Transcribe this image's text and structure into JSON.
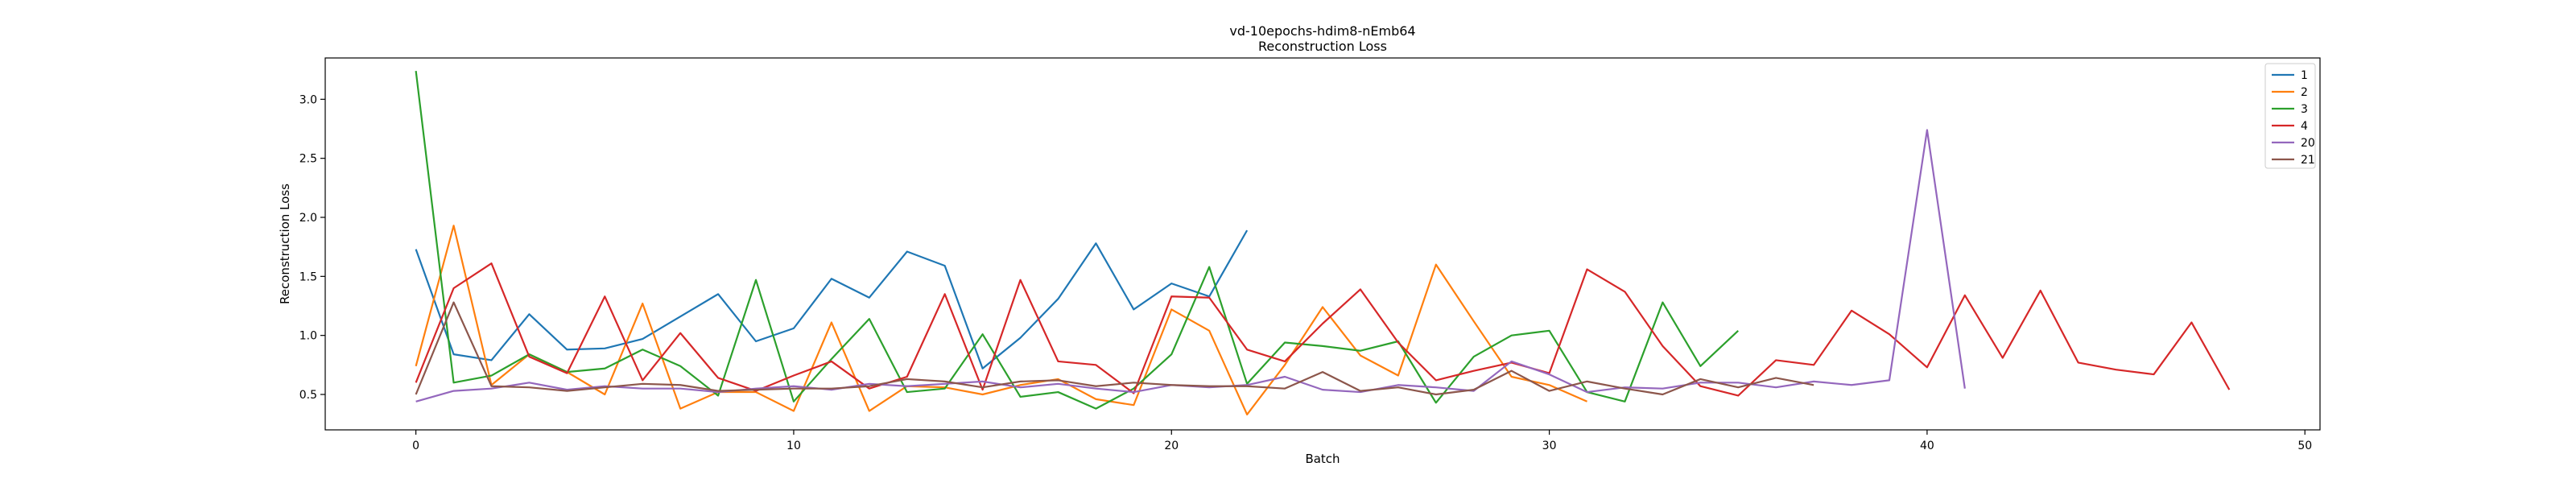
{
  "chart_data": {
    "type": "line",
    "title": "vd-10epochs-hdim8-nEmb64",
    "subtitle": "Reconstruction Loss",
    "xlabel": "Batch",
    "ylabel": "Reconstruction Loss",
    "xlim": [
      -2.4,
      50.4
    ],
    "ylim": [
      0.2,
      3.35
    ],
    "xticks": [
      0,
      10,
      20,
      30,
      40,
      50
    ],
    "yticks": [
      0.5,
      1.0,
      1.5,
      2.0,
      2.5,
      3.0
    ],
    "xtick_labels": [
      "0",
      "10",
      "20",
      "30",
      "40",
      "50"
    ],
    "ytick_labels": [
      "0.5",
      "1.0",
      "1.5",
      "2.0",
      "2.5",
      "3.0"
    ],
    "grid": false,
    "legend_position": "top-right",
    "series": [
      {
        "name": "1",
        "color": "#1f77b4",
        "values": [
          1.73,
          0.84,
          0.79,
          1.18,
          0.88,
          0.89,
          0.97,
          1.16,
          1.35,
          0.95,
          1.06,
          1.48,
          1.32,
          1.71,
          1.59,
          0.72,
          0.98,
          1.31,
          1.78,
          1.22,
          1.44,
          1.33,
          1.89
        ]
      },
      {
        "name": "2",
        "color": "#ff7f0e",
        "values": [
          0.74,
          1.93,
          0.58,
          0.84,
          0.69,
          0.5,
          1.27,
          0.38,
          0.52,
          0.52,
          0.36,
          1.11,
          0.36,
          0.57,
          0.56,
          0.5,
          0.58,
          0.63,
          0.46,
          0.41,
          1.22,
          1.04,
          0.33,
          0.75,
          1.24,
          0.83,
          0.66,
          1.6,
          1.12,
          0.65,
          0.58,
          0.44
        ]
      },
      {
        "name": "3",
        "color": "#2ca02c",
        "values": [
          3.24,
          0.6,
          0.66,
          0.84,
          0.69,
          0.72,
          0.88,
          0.74,
          0.49,
          1.47,
          0.44,
          0.8,
          1.14,
          0.52,
          0.55,
          1.01,
          0.48,
          0.52,
          0.38,
          0.55,
          0.84,
          1.58,
          0.59,
          0.94,
          0.91,
          0.87,
          0.95,
          0.43,
          0.82,
          1.0,
          1.04,
          0.52,
          0.44,
          1.28,
          0.74,
          1.04
        ]
      },
      {
        "name": "4",
        "color": "#d62728",
        "values": [
          0.6,
          1.4,
          1.61,
          0.82,
          0.68,
          1.33,
          0.62,
          1.02,
          0.64,
          0.53,
          0.66,
          0.78,
          0.55,
          0.65,
          1.35,
          0.54,
          1.47,
          0.78,
          0.75,
          0.51,
          1.33,
          1.32,
          0.88,
          0.78,
          1.1,
          1.39,
          0.94,
          0.62,
          0.7,
          0.77,
          0.68,
          1.56,
          1.37,
          0.91,
          0.57,
          0.49,
          0.79,
          0.75,
          1.21,
          1.01,
          0.73,
          1.34,
          0.81,
          1.38,
          0.77,
          0.71,
          0.67,
          1.11,
          0.54
        ]
      },
      {
        "name": "20",
        "color": "#9467bd",
        "values": [
          0.44,
          0.53,
          0.55,
          0.6,
          0.54,
          0.57,
          0.55,
          0.55,
          0.52,
          0.55,
          0.57,
          0.54,
          0.59,
          0.57,
          0.59,
          0.61,
          0.56,
          0.59,
          0.55,
          0.52,
          0.58,
          0.56,
          0.58,
          0.65,
          0.54,
          0.52,
          0.58,
          0.56,
          0.53,
          0.78,
          0.67,
          0.52,
          0.56,
          0.55,
          0.6,
          0.6,
          0.56,
          0.61,
          0.58,
          0.62,
          2.74,
          0.55
        ]
      },
      {
        "name": "21",
        "color": "#8c564b",
        "values": [
          0.5,
          1.28,
          0.57,
          0.56,
          0.53,
          0.56,
          0.59,
          0.58,
          0.53,
          0.54,
          0.55,
          0.55,
          0.57,
          0.63,
          0.61,
          0.56,
          0.61,
          0.62,
          0.57,
          0.6,
          0.58,
          0.57,
          0.57,
          0.55,
          0.69,
          0.53,
          0.56,
          0.5,
          0.54,
          0.7,
          0.53,
          0.61,
          0.55,
          0.5,
          0.63,
          0.56,
          0.64,
          0.58
        ]
      }
    ]
  }
}
